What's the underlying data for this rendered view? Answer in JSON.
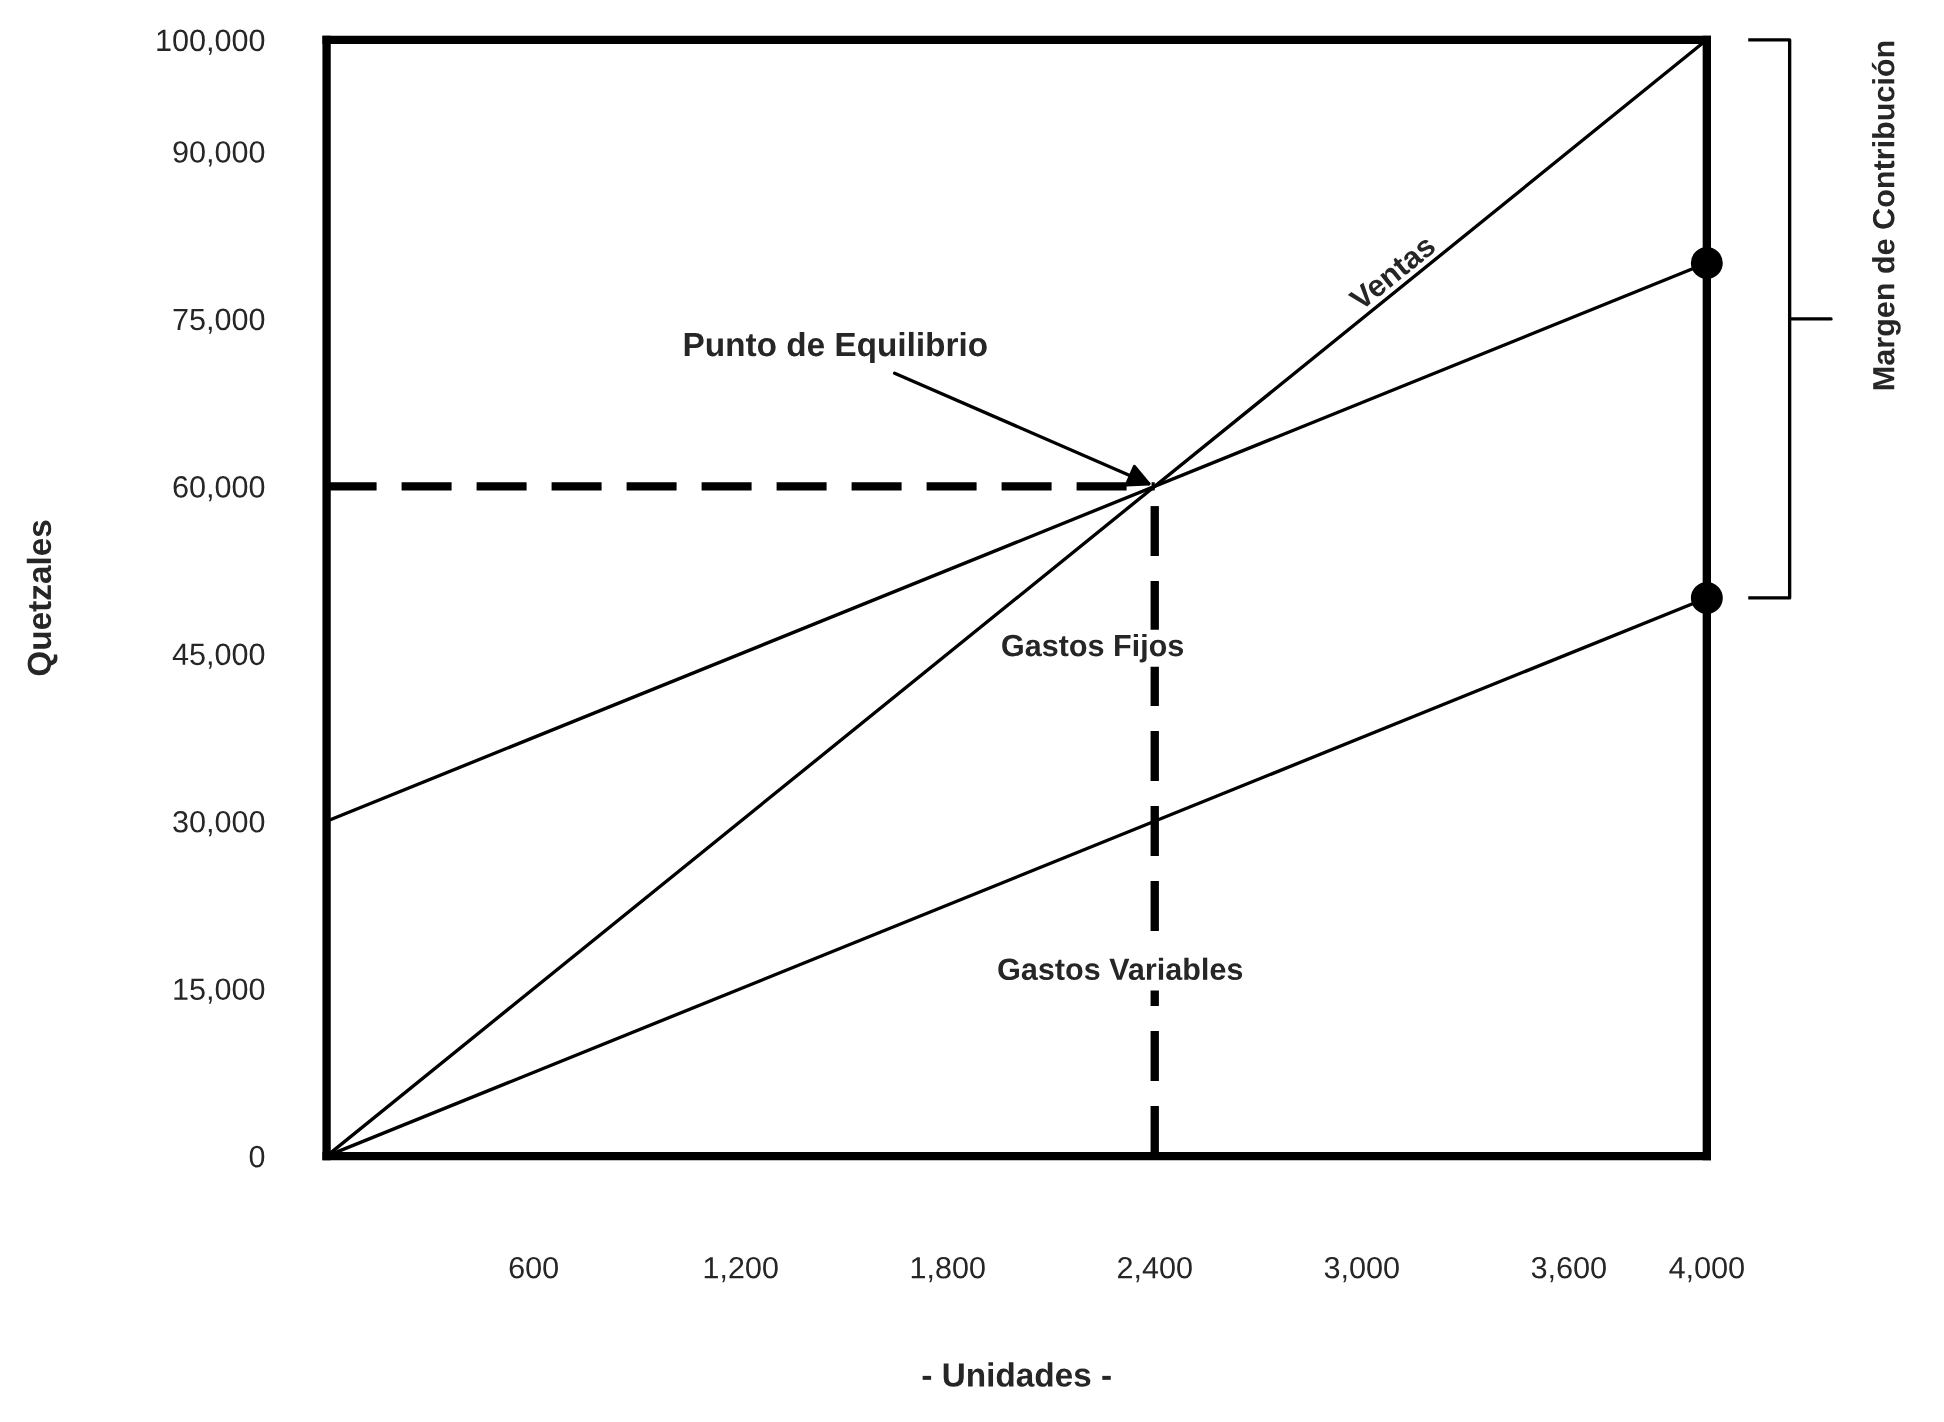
{
  "chart_data": {
    "type": "line",
    "xlabel": "- Unidades -",
    "ylabel": "Quetzales",
    "xlim": [
      0,
      4000
    ],
    "ylim": [
      0,
      100000
    ],
    "xticks": [
      600,
      {
        "value": 1200,
        "label": "1,200"
      },
      {
        "value": 1800,
        "label": "1,800"
      },
      {
        "value": 2400,
        "label": "2,400"
      },
      {
        "value": 3000,
        "label": "3,000"
      },
      {
        "value": 3600,
        "label": "3,600"
      },
      {
        "value": 4000,
        "label": "4,000"
      }
    ],
    "yticks": [
      0,
      {
        "value": 15000,
        "label": "15,000"
      },
      {
        "value": 30000,
        "label": "30,000"
      },
      {
        "value": 45000,
        "label": "45,000"
      },
      {
        "value": 60000,
        "label": "60,000"
      },
      {
        "value": 75000,
        "label": "75,000"
      },
      {
        "value": 90000,
        "label": "90,000"
      },
      {
        "value": 100000,
        "label": "100,000"
      }
    ],
    "grid": false,
    "legend": false,
    "series": [
      {
        "name": "Ventas",
        "color": "#000000",
        "x": [
          0,
          4000
        ],
        "values": [
          0,
          100000
        ]
      },
      {
        "color": "#000000",
        "x": [
          0,
          4000
        ],
        "values": [
          30000,
          80000
        ]
      },
      {
        "color": "#000000",
        "x": [
          0,
          4000
        ],
        "values": [
          0,
          50000
        ]
      },
      {
        "color": "#000000",
        "x": [
          0,
          2400
        ],
        "values": [
          60000,
          60000
        ],
        "line_style": "dashed"
      },
      {
        "color": "#000000",
        "x": [
          2400,
          2400
        ],
        "values": [
          0,
          60000
        ],
        "line_style": "dashed"
      },
      {
        "type": "scatter",
        "color": "#000000",
        "x": [
          4000,
          4000
        ],
        "values": [
          80000,
          50000
        ],
        "marker": "circle"
      }
    ],
    "annotations": [
      {
        "text": "Punto de Equilibrio",
        "x": 2400,
        "y": 60000
      },
      "Gastos Fijos",
      "Gastos Variables",
      "Margen de Contribución"
    ]
  }
}
